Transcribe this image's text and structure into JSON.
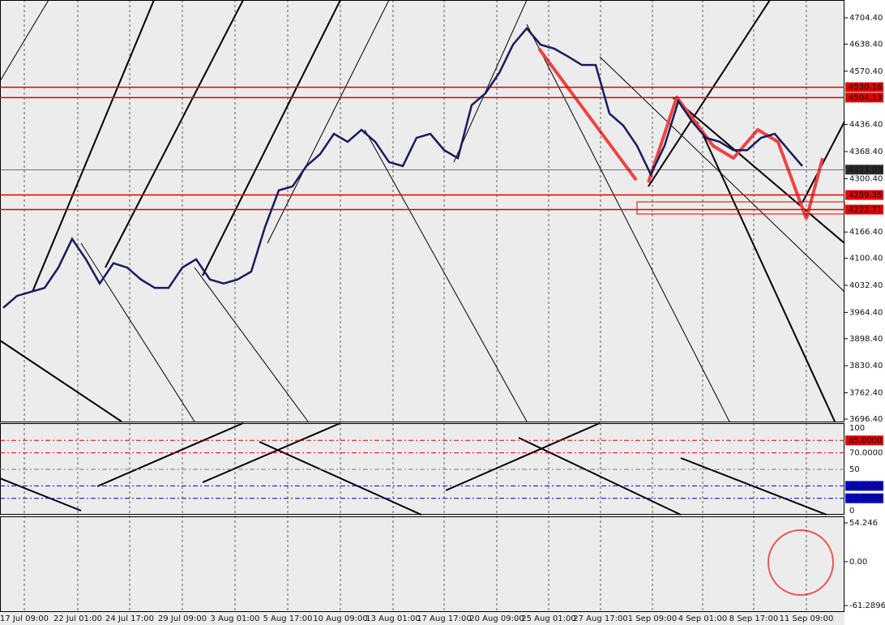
{
  "price_panel": {
    "ylim": [
      3696.4,
      4704.4
    ],
    "ticks": [
      "4704.40",
      "4638.40",
      "4570.40",
      "4436.40",
      "4368.40",
      "4300.40",
      "4166.40",
      "4100.40",
      "4032.40",
      "3964.40",
      "3898.40",
      "3830.40",
      "3762.40",
      "3696.40"
    ],
    "levels": [
      {
        "label": "4530.16",
        "color": "#e00000"
      },
      {
        "label": "4504.13",
        "color": "#e00000"
      },
      {
        "label": "4323.03",
        "color": "#2a2a2a"
      },
      {
        "label": "4259.35",
        "color": "#e00000"
      },
      {
        "label": "4222.71",
        "color": "#e00000"
      }
    ],
    "close": [
      3976,
      4006,
      4016,
      4026,
      4077,
      4149,
      4098,
      4037,
      4088,
      4077,
      4047,
      4026,
      4026,
      4077,
      4098,
      4047,
      4037,
      4047,
      4067,
      4179,
      4271,
      4281,
      4332,
      4362,
      4413,
      4393,
      4423,
      4393,
      4342,
      4332,
      4403,
      4413,
      4372,
      4352,
      4485,
      4515,
      4566,
      4637,
      4678,
      4637,
      4627,
      4607,
      4586,
      4586,
      4464,
      4434,
      4383,
      4311,
      4383,
      4495,
      4444,
      4403,
      4393,
      4372,
      4372,
      4403,
      4413,
      4372,
      4332
    ],
    "close_color": "#1a1a5e"
  },
  "oscillator_panel": {
    "ylim": [
      0,
      100
    ],
    "ticks": [
      "100",
      "85.0000",
      "70.0000",
      "50",
      "30.0000",
      "15.0000",
      "0"
    ]
  },
  "macd_panel": {
    "ylim": [
      -61.2896,
      54.246
    ],
    "ticks": [
      "54.246",
      "0.00",
      "-61.2896"
    ]
  },
  "time_axis": [
    "17 Jul 09:00",
    "22 Jul 01:00",
    "24 Jul 17:00",
    "29 Jul 09:00",
    "3 Aug 01:00",
    "5 Aug 17:00",
    "10 Aug 09:00",
    "13 Aug 01:00",
    "17 Aug 17:00",
    "20 Aug 09:00",
    "25 Aug 01:00",
    "27 Aug 17:00",
    "1 Sep 09:00",
    "4 Sep 01:00",
    "8 Sep 17:00",
    "11 Sep 09:00"
  ]
}
